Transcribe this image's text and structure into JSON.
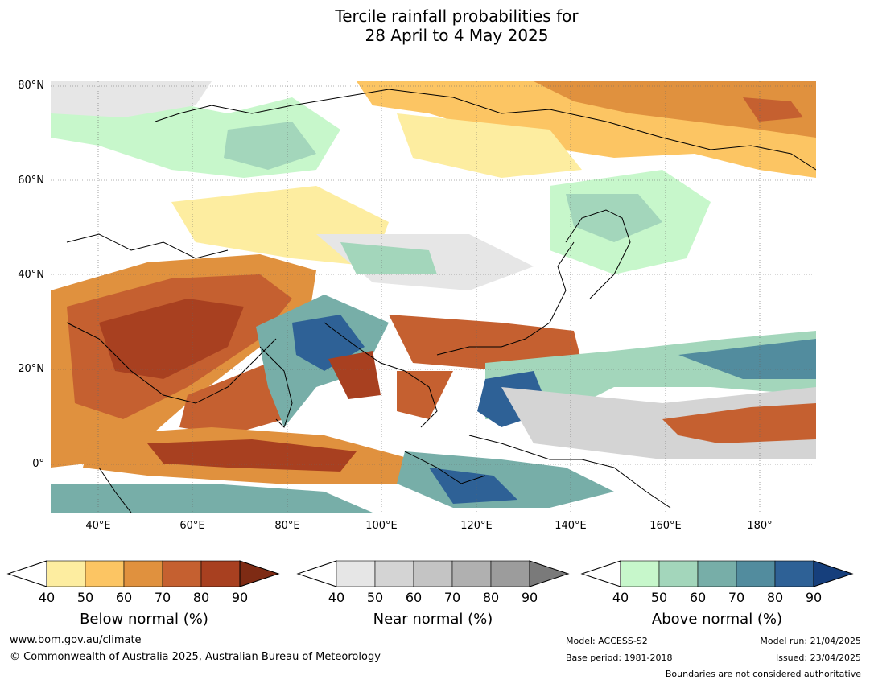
{
  "title": {
    "line1": "Tercile rainfall probabilities for",
    "line2": "28 April to 4 May 2025"
  },
  "map": {
    "lat_labels": [
      "80°N",
      "60°N",
      "40°N",
      "20°N",
      "0°"
    ],
    "lon_labels": [
      "40°E",
      "60°E",
      "80°E",
      "100°E",
      "120°E",
      "140°E",
      "160°E",
      "180°"
    ]
  },
  "colorbars": [
    {
      "title": "Below normal (%)",
      "ticks": [
        "40",
        "50",
        "60",
        "70",
        "80",
        "90"
      ],
      "colors": [
        "#ffffff",
        "#fdeda0",
        "#fcc563",
        "#e0913e",
        "#c56030",
        "#a84020",
        "#7e2b14"
      ]
    },
    {
      "title": "Near normal (%)",
      "ticks": [
        "40",
        "50",
        "60",
        "70",
        "80",
        "90"
      ],
      "colors": [
        "#ffffff",
        "#e6e6e6",
        "#d4d4d4",
        "#c4c4c4",
        "#b0b0b0",
        "#9c9c9c",
        "#7a7a7a"
      ]
    },
    {
      "title": "Above normal (%)",
      "ticks": [
        "40",
        "50",
        "60",
        "70",
        "80",
        "90"
      ],
      "colors": [
        "#ffffff",
        "#c7f7cb",
        "#a3d6bb",
        "#77aea8",
        "#528c9e",
        "#2e6196",
        "#163f7c"
      ]
    }
  ],
  "footer": {
    "website": "www.bom.gov.au/climate",
    "copyright": "© Commonwealth of Australia 2025, Australian Bureau of Meteorology",
    "model": "Model: ACCESS-S2",
    "base_period": "Base period: 1981-2018",
    "model_run": "Model run: 21/04/2025",
    "issued": "Issued: 23/04/2025",
    "boundaries_note": "Boundaries are not considered authoritative"
  }
}
